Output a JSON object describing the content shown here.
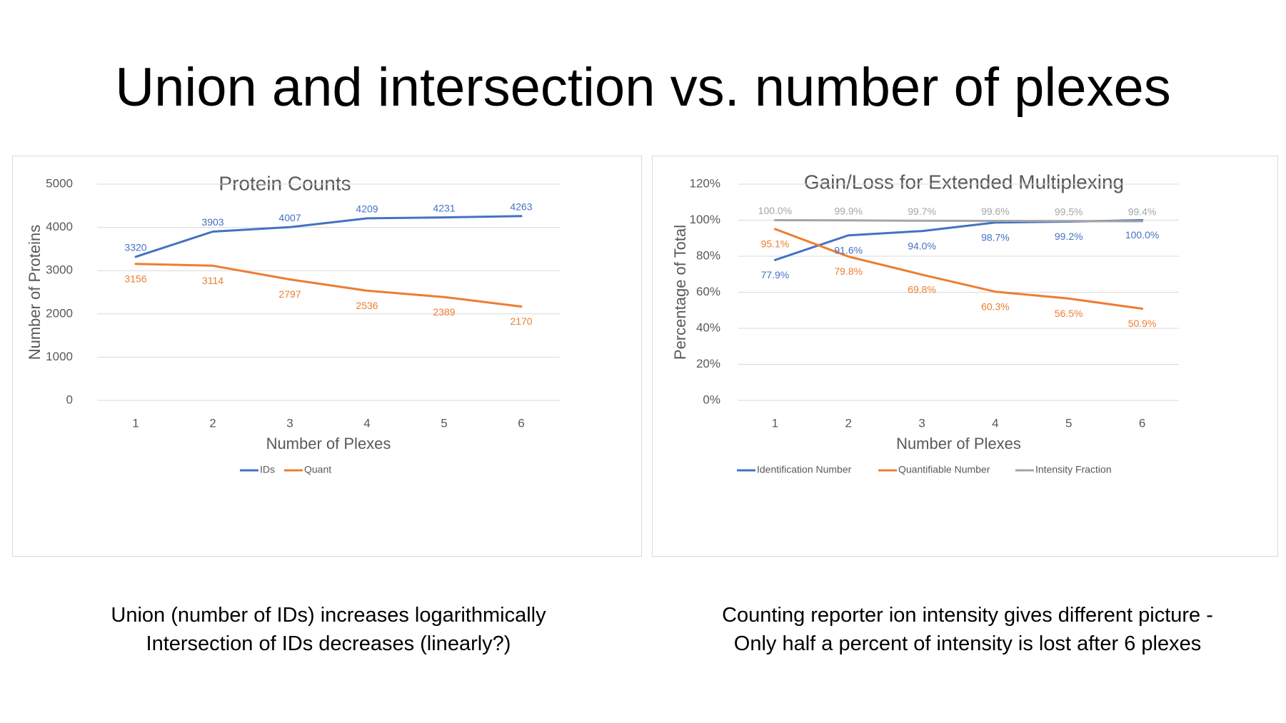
{
  "slide": {
    "title": "Union and intersection vs. number of plexes",
    "caption_left": [
      "Union (number of IDs) increases logarithmically",
      "Intersection of IDs decreases (linearly?)"
    ],
    "caption_right": [
      "Counting reporter ion intensity gives different picture -",
      "Only half a percent of intensity is lost after 6 plexes"
    ]
  },
  "chart_data": [
    {
      "type": "line",
      "title": "Protein Counts",
      "xlabel": "Number of Plexes",
      "ylabel": "Number of Proteins",
      "categories": [
        "1",
        "2",
        "3",
        "4",
        "5",
        "6"
      ],
      "ylim": [
        0,
        5000
      ],
      "yticks": [
        0,
        1000,
        2000,
        3000,
        4000,
        5000
      ],
      "ytick_labels": [
        "0",
        "1000",
        "2000",
        "3000",
        "4000",
        "5000"
      ],
      "grid": true,
      "legend": "bottom",
      "series": [
        {
          "name": "IDs",
          "color": "#4472c4",
          "values": [
            3320,
            3903,
            4007,
            4209,
            4231,
            4263
          ],
          "labels": [
            "3320",
            "3903",
            "4007",
            "4209",
            "4231",
            "4263"
          ],
          "label_position": "above"
        },
        {
          "name": "Quant",
          "color": "#ed7d31",
          "values": [
            3156,
            3114,
            2797,
            2536,
            2389,
            2170
          ],
          "labels": [
            "3156",
            "3114",
            "2797",
            "2536",
            "2389",
            "2170"
          ],
          "label_position": "below"
        }
      ]
    },
    {
      "type": "line",
      "title": "Gain/Loss for Extended Multiplexing",
      "xlabel": "Number of Plexes",
      "ylabel": "Percentage of Total",
      "categories": [
        "1",
        "2",
        "3",
        "4",
        "5",
        "6"
      ],
      "ylim": [
        0,
        120
      ],
      "yticks": [
        0,
        20,
        40,
        60,
        80,
        100,
        120
      ],
      "ytick_labels": [
        "0%",
        "20%",
        "40%",
        "60%",
        "80%",
        "100%",
        "120%"
      ],
      "grid": true,
      "legend": "bottom",
      "series": [
        {
          "name": "Identification Number",
          "color": "#4472c4",
          "values": [
            77.9,
            91.6,
            94.0,
            98.7,
            99.2,
            100.0
          ],
          "labels": [
            "77.9%",
            "91.6%",
            "94.0%",
            "98.7%",
            "99.2%",
            "100.0%"
          ],
          "label_position": "below"
        },
        {
          "name": "Quantifiable Number",
          "color": "#ed7d31",
          "values": [
            95.1,
            79.8,
            69.8,
            60.3,
            56.5,
            50.9
          ],
          "labels": [
            "95.1%",
            "79.8%",
            "69.8%",
            "60.3%",
            "56.5%",
            "50.9%"
          ],
          "label_position": "below"
        },
        {
          "name": "Intensity Fraction",
          "color": "#a5a5a5",
          "values": [
            100.0,
            99.9,
            99.7,
            99.6,
            99.5,
            99.4
          ],
          "labels": [
            "100.0%",
            "99.9%",
            "99.7%",
            "99.6%",
            "99.5%",
            "99.4%"
          ],
          "label_position": "above"
        }
      ]
    }
  ]
}
